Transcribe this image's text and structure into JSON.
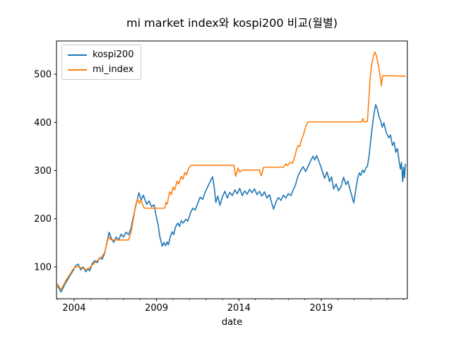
{
  "figure": {
    "background": "#ffffff",
    "spine_color": "#000000",
    "text_color": "#000000",
    "legend_border_color": "#cccccc"
  },
  "chart_data": {
    "type": "line",
    "title": "mi market index와 kospi200 비교(월별)",
    "xlabel": "date",
    "ylabel": "",
    "grid": false,
    "legend_position": "upper-left",
    "xlim": [
      2002.93,
      2024.22
    ],
    "ylim": [
      34,
      569
    ],
    "y_ticks": [
      100,
      200,
      300,
      400,
      500
    ],
    "x_major_ticks": [
      2004,
      2009,
      2014,
      2019
    ],
    "x_minor_ticks": [
      2003,
      2005,
      2006,
      2007,
      2008,
      2010,
      2011,
      2012,
      2013,
      2015,
      2016,
      2017,
      2018,
      2020,
      2021,
      2022,
      2023,
      2024
    ],
    "series": [
      {
        "name": "kospi200",
        "color": "#1f77b4",
        "points": [
          [
            2003.0,
            60
          ],
          [
            2003.1,
            55
          ],
          [
            2003.2,
            48
          ],
          [
            2003.35,
            58
          ],
          [
            2003.5,
            68
          ],
          [
            2003.65,
            76
          ],
          [
            2003.8,
            85
          ],
          [
            2003.95,
            93
          ],
          [
            2004.1,
            103
          ],
          [
            2004.25,
            106
          ],
          [
            2004.4,
            94
          ],
          [
            2004.55,
            100
          ],
          [
            2004.7,
            90
          ],
          [
            2004.85,
            96
          ],
          [
            2004.95,
            92
          ],
          [
            2005.1,
            107
          ],
          [
            2005.25,
            113
          ],
          [
            2005.4,
            109
          ],
          [
            2005.55,
            119
          ],
          [
            2005.7,
            116
          ],
          [
            2005.85,
            128
          ],
          [
            2006.0,
            152
          ],
          [
            2006.12,
            172
          ],
          [
            2006.25,
            160
          ],
          [
            2006.4,
            151
          ],
          [
            2006.55,
            162
          ],
          [
            2006.7,
            156
          ],
          [
            2006.85,
            168
          ],
          [
            2007.0,
            162
          ],
          [
            2007.15,
            172
          ],
          [
            2007.3,
            167
          ],
          [
            2007.45,
            180
          ],
          [
            2007.6,
            205
          ],
          [
            2007.75,
            228
          ],
          [
            2007.93,
            254
          ],
          [
            2008.07,
            239
          ],
          [
            2008.2,
            249
          ],
          [
            2008.4,
            230
          ],
          [
            2008.55,
            237
          ],
          [
            2008.7,
            225
          ],
          [
            2008.85,
            229
          ],
          [
            2009.0,
            202
          ],
          [
            2009.1,
            187
          ],
          [
            2009.2,
            163
          ],
          [
            2009.35,
            143
          ],
          [
            2009.45,
            151
          ],
          [
            2009.55,
            144
          ],
          [
            2009.65,
            152
          ],
          [
            2009.72,
            146
          ],
          [
            2009.85,
            164
          ],
          [
            2009.95,
            173
          ],
          [
            2010.05,
            167
          ],
          [
            2010.15,
            183
          ],
          [
            2010.3,
            191
          ],
          [
            2010.4,
            184
          ],
          [
            2010.5,
            196
          ],
          [
            2010.62,
            191
          ],
          [
            2010.78,
            199
          ],
          [
            2010.9,
            195
          ],
          [
            2011.05,
            211
          ],
          [
            2011.2,
            222
          ],
          [
            2011.35,
            218
          ],
          [
            2011.5,
            232
          ],
          [
            2011.65,
            245
          ],
          [
            2011.8,
            240
          ],
          [
            2011.95,
            255
          ],
          [
            2012.1,
            266
          ],
          [
            2012.25,
            277
          ],
          [
            2012.4,
            287
          ],
          [
            2012.5,
            266
          ],
          [
            2012.6,
            234
          ],
          [
            2012.72,
            247
          ],
          [
            2012.85,
            228
          ],
          [
            2013.0,
            246
          ],
          [
            2013.15,
            257
          ],
          [
            2013.3,
            243
          ],
          [
            2013.45,
            255
          ],
          [
            2013.6,
            248
          ],
          [
            2013.75,
            260
          ],
          [
            2013.9,
            252
          ],
          [
            2014.05,
            263
          ],
          [
            2014.2,
            248
          ],
          [
            2014.35,
            258
          ],
          [
            2014.5,
            251
          ],
          [
            2014.65,
            261
          ],
          [
            2014.8,
            254
          ],
          [
            2014.95,
            262
          ],
          [
            2015.1,
            250
          ],
          [
            2015.25,
            257
          ],
          [
            2015.4,
            247
          ],
          [
            2015.55,
            256
          ],
          [
            2015.7,
            243
          ],
          [
            2015.85,
            250
          ],
          [
            2016.0,
            232
          ],
          [
            2016.1,
            220
          ],
          [
            2016.25,
            235
          ],
          [
            2016.4,
            244
          ],
          [
            2016.55,
            238
          ],
          [
            2016.7,
            249
          ],
          [
            2016.85,
            243
          ],
          [
            2017.0,
            252
          ],
          [
            2017.15,
            248
          ],
          [
            2017.3,
            260
          ],
          [
            2017.45,
            272
          ],
          [
            2017.6,
            290
          ],
          [
            2017.75,
            300
          ],
          [
            2017.9,
            308
          ],
          [
            2018.05,
            298
          ],
          [
            2018.2,
            309
          ],
          [
            2018.35,
            320
          ],
          [
            2018.5,
            330
          ],
          [
            2018.6,
            322
          ],
          [
            2018.72,
            331
          ],
          [
            2018.9,
            315
          ],
          [
            2019.05,
            300
          ],
          [
            2019.2,
            284
          ],
          [
            2019.35,
            297
          ],
          [
            2019.5,
            277
          ],
          [
            2019.62,
            287
          ],
          [
            2019.75,
            262
          ],
          [
            2019.9,
            272
          ],
          [
            2020.05,
            258
          ],
          [
            2020.2,
            267
          ],
          [
            2020.35,
            286
          ],
          [
            2020.5,
            271
          ],
          [
            2020.62,
            278
          ],
          [
            2020.75,
            260
          ],
          [
            2020.97,
            233
          ],
          [
            2021.1,
            262
          ],
          [
            2021.2,
            282
          ],
          [
            2021.3,
            295
          ],
          [
            2021.4,
            290
          ],
          [
            2021.5,
            301
          ],
          [
            2021.6,
            296
          ],
          [
            2021.7,
            305
          ],
          [
            2021.8,
            309
          ],
          [
            2021.9,
            330
          ],
          [
            2022.0,
            363
          ],
          [
            2022.1,
            392
          ],
          [
            2022.2,
            418
          ],
          [
            2022.3,
            437
          ],
          [
            2022.4,
            428
          ],
          [
            2022.5,
            412
          ],
          [
            2022.6,
            404
          ],
          [
            2022.7,
            390
          ],
          [
            2022.8,
            399
          ],
          [
            2022.95,
            378
          ],
          [
            2023.1,
            368
          ],
          [
            2023.2,
            374
          ],
          [
            2023.32,
            352
          ],
          [
            2023.42,
            359
          ],
          [
            2023.52,
            338
          ],
          [
            2023.62,
            346
          ],
          [
            2023.72,
            320
          ],
          [
            2023.8,
            303
          ],
          [
            2023.87,
            317
          ],
          [
            2023.94,
            277
          ],
          [
            2024.0,
            307
          ],
          [
            2024.05,
            285
          ],
          [
            2024.1,
            313
          ]
        ]
      },
      {
        "name": "mi_index",
        "color": "#ff7f0e",
        "points": [
          [
            2003.0,
            64
          ],
          [
            2003.1,
            58
          ],
          [
            2003.2,
            53
          ],
          [
            2003.35,
            62
          ],
          [
            2003.5,
            72
          ],
          [
            2003.65,
            80
          ],
          [
            2003.8,
            88
          ],
          [
            2003.95,
            96
          ],
          [
            2004.1,
            100
          ],
          [
            2004.3,
            100
          ],
          [
            2004.5,
            97
          ],
          [
            2004.7,
            95
          ],
          [
            2004.9,
            97
          ],
          [
            2005.1,
            104
          ],
          [
            2005.3,
            110
          ],
          [
            2005.5,
            116
          ],
          [
            2005.7,
            122
          ],
          [
            2005.85,
            130
          ],
          [
            2006.0,
            150
          ],
          [
            2006.1,
            163
          ],
          [
            2006.2,
            157
          ],
          [
            2006.35,
            156
          ],
          [
            2007.3,
            156
          ],
          [
            2007.45,
            172
          ],
          [
            2007.6,
            200
          ],
          [
            2007.73,
            228
          ],
          [
            2007.85,
            241
          ],
          [
            2007.95,
            232
          ],
          [
            2008.05,
            239
          ],
          [
            2008.15,
            230
          ],
          [
            2008.25,
            222
          ],
          [
            2009.5,
            222
          ],
          [
            2009.57,
            234
          ],
          [
            2009.63,
            230
          ],
          [
            2009.7,
            239
          ],
          [
            2009.8,
            256
          ],
          [
            2009.9,
            250
          ],
          [
            2010.0,
            266
          ],
          [
            2010.1,
            260
          ],
          [
            2010.25,
            278
          ],
          [
            2010.35,
            272
          ],
          [
            2010.5,
            288
          ],
          [
            2010.6,
            282
          ],
          [
            2010.72,
            296
          ],
          [
            2010.82,
            291
          ],
          [
            2010.95,
            305
          ],
          [
            2011.1,
            311
          ],
          [
            2013.7,
            311
          ],
          [
            2013.8,
            288
          ],
          [
            2013.95,
            305
          ],
          [
            2014.05,
            297
          ],
          [
            2014.2,
            301
          ],
          [
            2015.25,
            301
          ],
          [
            2015.36,
            289
          ],
          [
            2015.5,
            307
          ],
          [
            2016.7,
            307
          ],
          [
            2016.85,
            314
          ],
          [
            2016.95,
            310
          ],
          [
            2017.1,
            317
          ],
          [
            2017.25,
            315
          ],
          [
            2017.4,
            330
          ],
          [
            2017.5,
            344
          ],
          [
            2017.6,
            352
          ],
          [
            2017.7,
            350
          ],
          [
            2017.8,
            365
          ],
          [
            2017.9,
            372
          ],
          [
            2018.0,
            385
          ],
          [
            2018.1,
            395
          ],
          [
            2018.2,
            401
          ],
          [
            2021.45,
            401
          ],
          [
            2021.52,
            408
          ],
          [
            2021.6,
            401
          ],
          [
            2021.8,
            402
          ],
          [
            2021.88,
            445
          ],
          [
            2021.96,
            490
          ],
          [
            2022.05,
            518
          ],
          [
            2022.15,
            536
          ],
          [
            2022.25,
            546
          ],
          [
            2022.35,
            538
          ],
          [
            2022.45,
            522
          ],
          [
            2022.52,
            508
          ],
          [
            2022.6,
            490
          ],
          [
            2022.65,
            476
          ],
          [
            2022.72,
            497
          ],
          [
            2024.1,
            496
          ]
        ]
      }
    ]
  }
}
